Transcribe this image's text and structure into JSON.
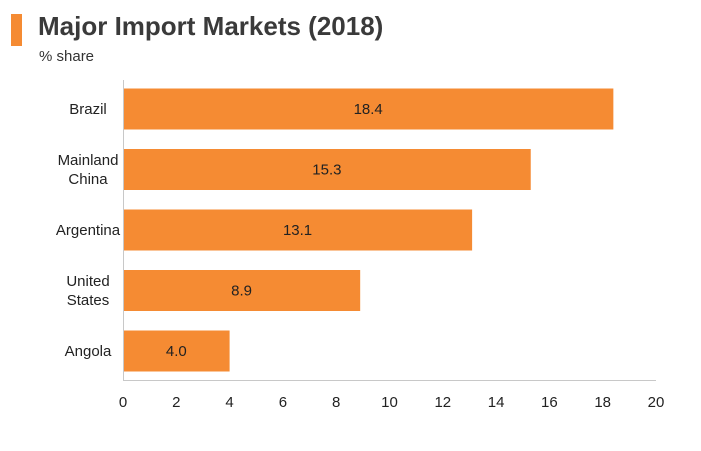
{
  "colors": {
    "bar": "#f58b33",
    "accent": "#f58b33",
    "axis": "#c8c8c8"
  },
  "chart_data": {
    "type": "bar",
    "orientation": "horizontal",
    "title": "Major Import Markets (2018)",
    "subtitle": "% share",
    "categories": [
      [
        "Brazil"
      ],
      [
        "Mainland",
        "China"
      ],
      [
        "Argentina"
      ],
      [
        "United",
        "States"
      ],
      [
        "Angola"
      ]
    ],
    "values": [
      18.4,
      15.3,
      13.1,
      8.9,
      4.0
    ],
    "value_labels": [
      "18.4",
      "15.3",
      "13.1",
      "8.9",
      "4.0"
    ],
    "xlim": [
      0,
      20
    ],
    "xticks": [
      0,
      2,
      4,
      6,
      8,
      10,
      12,
      14,
      16,
      18,
      20
    ],
    "grid": false,
    "legend": "none"
  }
}
